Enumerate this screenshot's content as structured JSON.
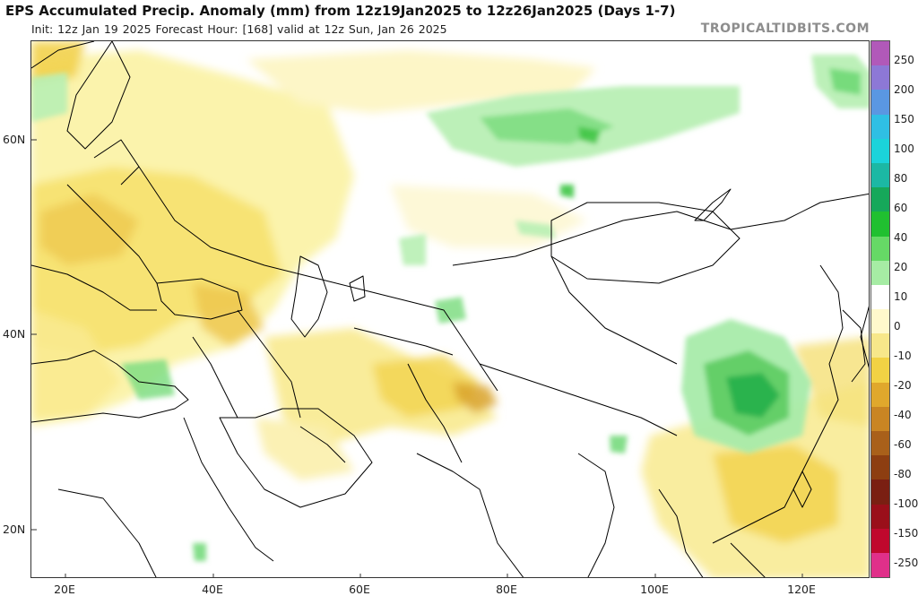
{
  "header": {
    "title": "EPS Accumulated Precip. Anomaly (mm) from 12z19Jan2025 to 12z26Jan2025 (Days 1-7)",
    "subtitle": "Init: 12z Jan 19 2025   Forecast Hour: [168]   valid at 12z Sun, Jan 26 2025",
    "brand": "TROPICALTIDBITS.COM"
  },
  "map": {
    "lat_labels": [
      "60N",
      "40N",
      "20N"
    ],
    "lon_labels": [
      "20E",
      "40E",
      "60E",
      "80E",
      "100E",
      "120E"
    ],
    "land_color": "#ffffff",
    "border_color": "#000000"
  },
  "colorbar": {
    "labels": [
      "250",
      "200",
      "150",
      "100",
      "80",
      "60",
      "40",
      "20",
      "10",
      "0",
      "-10",
      "-20",
      "-40",
      "-60",
      "-80",
      "-100",
      "-150",
      "-250"
    ],
    "colors": [
      "#b159b9",
      "#8d78d6",
      "#5a97e2",
      "#2fbfe4",
      "#1bd3da",
      "#1cb8a4",
      "#16a85a",
      "#20c030",
      "#66d966",
      "#a6eca4",
      "#ffffff",
      "#fff9cc",
      "#f7e78a",
      "#f2d244",
      "#e0a82c",
      "#c98523",
      "#a9601a",
      "#8d3e11",
      "#7a1f12",
      "#9a0f1a",
      "#c0082d",
      "#e0308a"
    ]
  }
}
